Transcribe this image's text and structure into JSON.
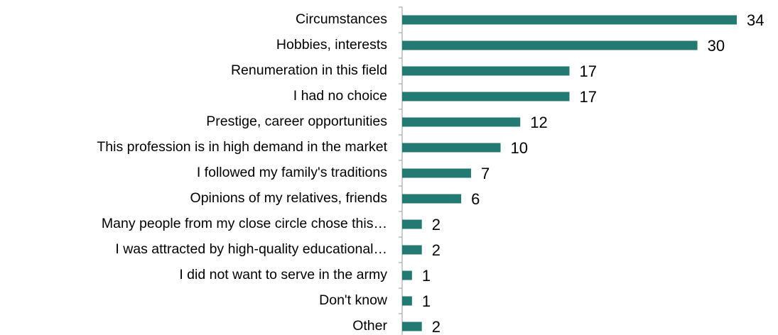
{
  "chart_data": {
    "type": "bar",
    "orientation": "horizontal",
    "categories": [
      "Circumstances",
      "Hobbies, interests",
      "Renumeration in this field",
      "I had no choice",
      "Prestige, career opportunities",
      "This profession is in high demand in the market",
      "I followed my family's traditions",
      "Opinions of my relatives, friends",
      "Many people from my close circle chose this…",
      "I was attracted by high-quality educational…",
      "I did not want to serve in the army",
      "Don't know",
      "Other"
    ],
    "values": [
      34,
      30,
      17,
      17,
      12,
      10,
      7,
      6,
      2,
      2,
      1,
      1,
      2
    ],
    "color": "#237a72",
    "xlim": [
      0,
      34
    ]
  }
}
